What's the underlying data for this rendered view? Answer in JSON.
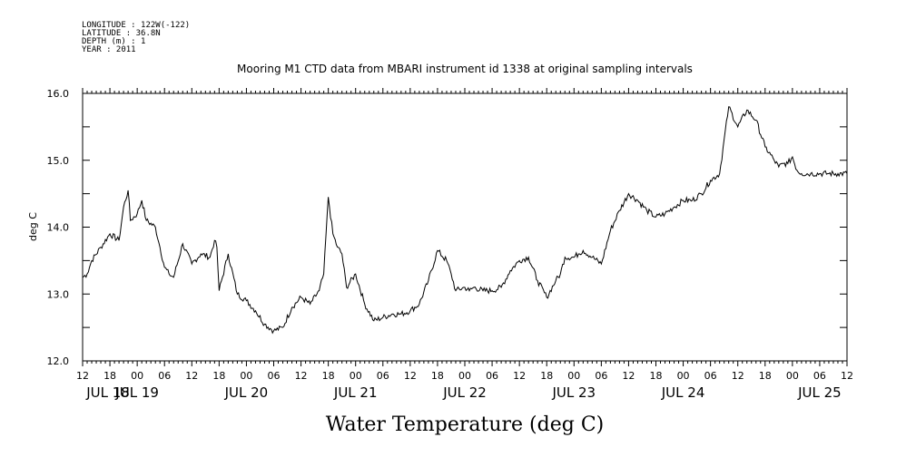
{
  "header": {
    "meta_lines": [
      "LONGITUDE : 122W(-122)",
      "LATITUDE : 36.8N",
      "DEPTH (m) : 1",
      "YEAR : 2011"
    ]
  },
  "chart_data": {
    "type": "line",
    "title": "Mooring M1 CTD data from MBARI instrument id 1338 at original sampling intervals",
    "xlabel": "Water Temperature (deg C)",
    "ylabel": "deg C",
    "ylim": [
      12.0,
      16.0
    ],
    "yticks": [
      "12.0",
      "13.0",
      "14.0",
      "15.0",
      "16.0"
    ],
    "xlim": [
      "2011-07-18 12:00",
      "2011-07-25 12:00"
    ],
    "x_hour_labels": [
      "12",
      "18",
      "00",
      "06",
      "12",
      "18",
      "00",
      "06",
      "12",
      "18",
      "00",
      "06",
      "12",
      "18",
      "00",
      "06",
      "12",
      "18",
      "00",
      "06",
      "12",
      "18",
      "00",
      "06",
      "12",
      "18",
      "00",
      "06",
      "12"
    ],
    "x_day_labels": [
      "JUL 18",
      "JUL 19",
      "JUL 20",
      "JUL 21",
      "JUL 22",
      "JUL 23",
      "JUL 24",
      "JUL 25"
    ],
    "grid": false,
    "series": [
      {
        "x": [
          "07-18 12:00",
          "07-18 13:00",
          "07-18 14:00",
          "07-18 16:00",
          "07-18 18:00",
          "07-18 20:00",
          "07-18 21:00",
          "07-18 22:00",
          "07-18 22:30",
          "07-19 00:00",
          "07-19 01:00",
          "07-19 02:00",
          "07-19 04:00",
          "07-19 05:00",
          "07-19 06:00",
          "07-19 07:00",
          "07-19 08:00",
          "07-19 10:00",
          "07-19 12:00",
          "07-19 14:00",
          "07-19 16:00",
          "07-19 17:00",
          "07-19 17:30",
          "07-19 18:00",
          "07-19 20:00",
          "07-19 22:00",
          "07-20 00:00",
          "07-20 02:00",
          "07-20 04:00",
          "07-20 06:00",
          "07-20 08:00",
          "07-20 10:00",
          "07-20 12:00",
          "07-20 14:00",
          "07-20 16:00",
          "07-20 17:00",
          "07-20 18:00",
          "07-20 19:00",
          "07-20 20:00",
          "07-20 21:00",
          "07-20 22:00",
          "07-21 00:00",
          "07-21 02:00",
          "07-21 04:00",
          "07-21 06:00",
          "07-21 08:00",
          "07-21 10:00",
          "07-21 12:00",
          "07-21 14:00",
          "07-21 16:00",
          "07-21 18:00",
          "07-21 20:00",
          "07-21 21:00",
          "07-21 22:00",
          "07-22 00:00",
          "07-22 01:00",
          "07-22 02:00",
          "07-22 04:00",
          "07-22 06:00",
          "07-22 08:00",
          "07-22 10:00",
          "07-22 12:00",
          "07-22 14:00",
          "07-22 16:00",
          "07-22 18:00",
          "07-22 20:00",
          "07-22 21:00",
          "07-22 22:00",
          "07-23 00:00",
          "07-23 01:00",
          "07-23 02:00",
          "07-23 04:00",
          "07-23 06:00",
          "07-23 08:00",
          "07-23 10:00",
          "07-23 12:00",
          "07-23 14:00",
          "07-23 16:00",
          "07-23 18:00",
          "07-23 20:00",
          "07-23 22:00",
          "07-24 00:00",
          "07-24 02:00",
          "07-24 04:00",
          "07-24 06:00",
          "07-24 08:00",
          "07-24 10:00",
          "07-24 12:00",
          "07-24 14:00",
          "07-24 16:00",
          "07-24 18:00",
          "07-24 20:00",
          "07-24 21:00",
          "07-24 22:00",
          "07-24 23:00",
          "07-25 00:00",
          "07-25 01:00",
          "07-25 02:00",
          "07-25 04:00",
          "07-25 06:00",
          "07-25 08:00",
          "07-25 10:00",
          "07-25 12:00"
        ],
        "values": [
          13.25,
          13.3,
          13.5,
          13.7,
          13.9,
          13.8,
          14.3,
          14.55,
          14.1,
          14.2,
          14.4,
          14.1,
          14.0,
          13.7,
          13.4,
          13.3,
          13.25,
          13.75,
          13.45,
          13.6,
          13.55,
          13.8,
          13.7,
          13.05,
          13.6,
          13.0,
          12.9,
          12.75,
          12.55,
          12.45,
          12.5,
          12.8,
          12.95,
          12.85,
          13.05,
          13.3,
          14.45,
          13.9,
          13.7,
          13.6,
          13.1,
          13.3,
          12.85,
          12.6,
          12.65,
          12.7,
          12.7,
          12.75,
          12.85,
          13.2,
          13.65,
          13.5,
          13.3,
          13.05,
          13.1,
          13.05,
          13.1,
          13.05,
          13.05,
          13.1,
          13.35,
          13.5,
          13.55,
          13.2,
          12.95,
          13.2,
          13.3,
          13.55,
          13.55,
          13.6,
          13.65,
          13.55,
          13.45,
          13.95,
          14.25,
          14.5,
          14.4,
          14.25,
          14.15,
          14.2,
          14.3,
          14.4,
          14.4,
          14.5,
          14.7,
          14.8,
          15.8,
          15.5,
          15.75,
          15.6,
          15.2,
          15.0,
          14.9,
          14.95,
          14.95,
          15.05,
          14.85,
          14.8,
          14.8,
          14.8,
          14.8,
          14.8,
          14.8
        ]
      }
    ]
  }
}
